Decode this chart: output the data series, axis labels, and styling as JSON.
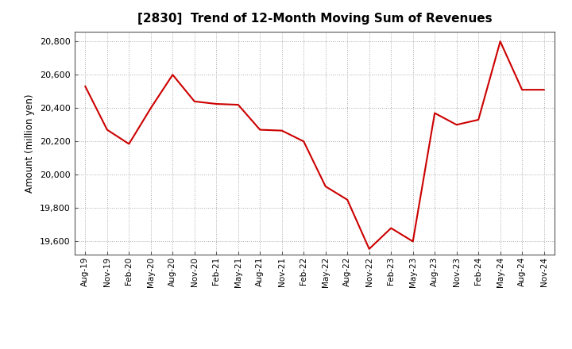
{
  "title": "[2830]  Trend of 12-Month Moving Sum of Revenues",
  "ylabel": "Amount (million yen)",
  "line_color": "#CC0000",
  "background_color": "#FFFFFF",
  "grid_color": "#AAAAAA",
  "ylim": [
    19520,
    20860
  ],
  "yticks": [
    19600,
    19800,
    20000,
    20200,
    20400,
    20600,
    20800
  ],
  "labels": [
    "Aug-19",
    "Nov-19",
    "Feb-20",
    "May-20",
    "Aug-20",
    "Nov-20",
    "Feb-21",
    "May-21",
    "Aug-21",
    "Nov-21",
    "Feb-22",
    "May-22",
    "Aug-22",
    "Nov-22",
    "Feb-23",
    "May-23",
    "Aug-23",
    "Nov-23",
    "Feb-24",
    "May-24",
    "Aug-24",
    "Nov-24"
  ],
  "values": [
    20530,
    20270,
    20185,
    20400,
    20600,
    20440,
    20425,
    20420,
    20270,
    20265,
    20200,
    19930,
    19850,
    19555,
    19680,
    19600,
    20370,
    20300,
    20330,
    20800,
    20510,
    20510
  ]
}
